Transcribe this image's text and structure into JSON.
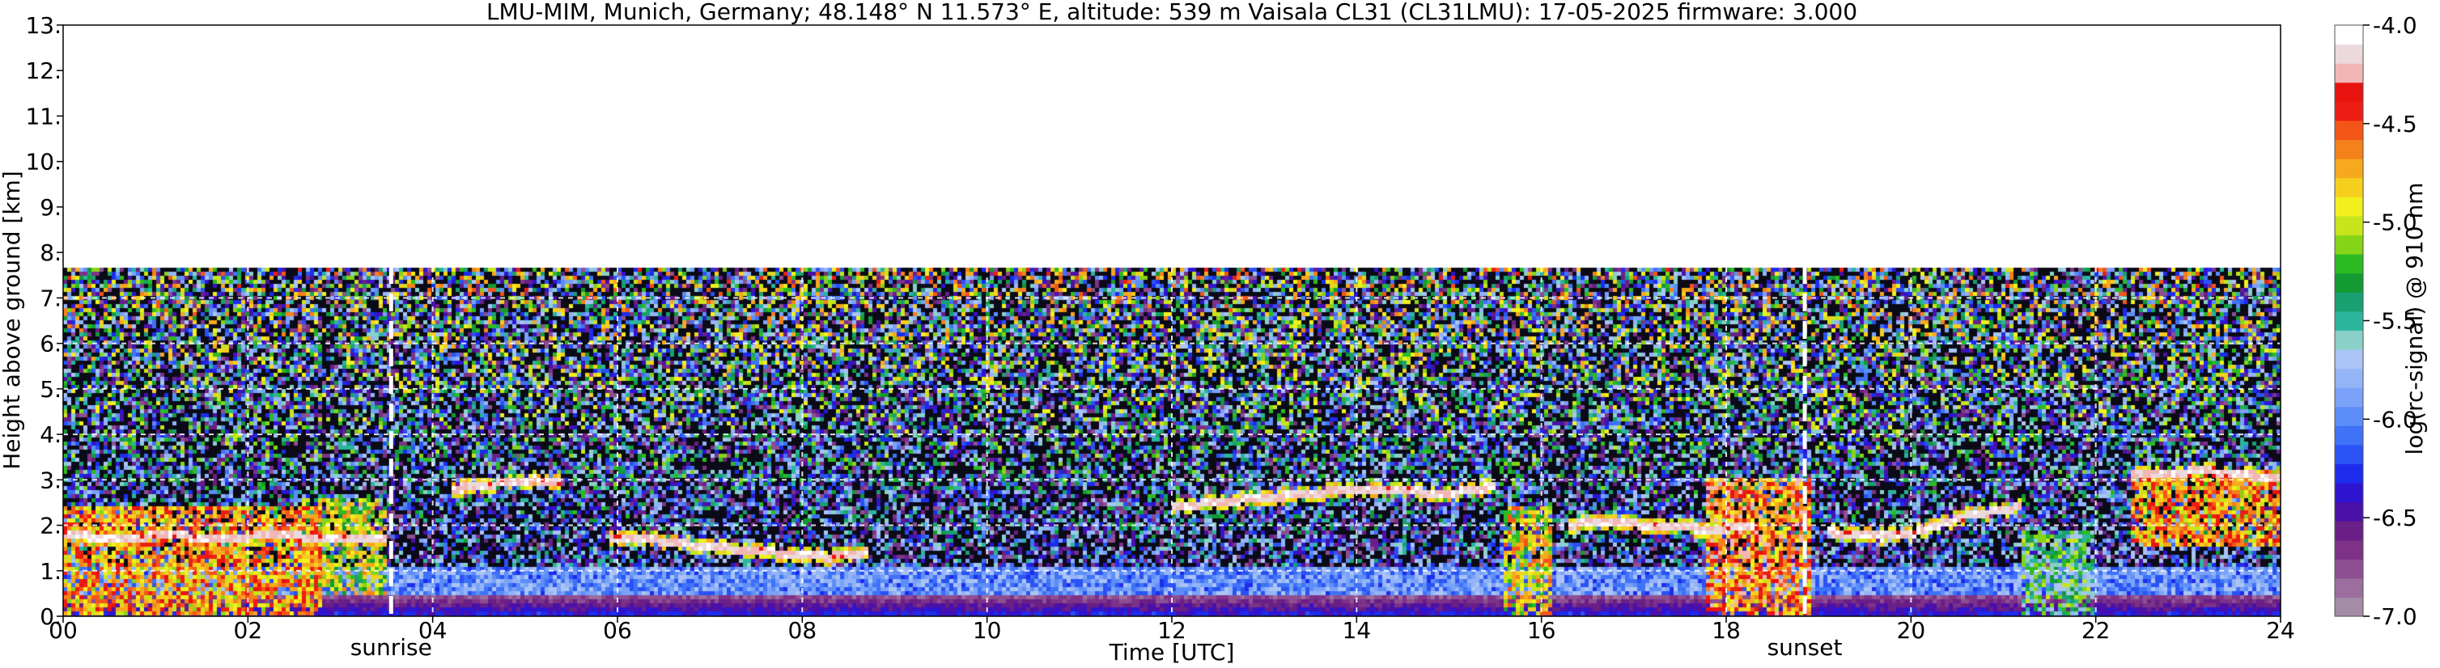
{
  "chart_data": {
    "type": "heatmap",
    "title": "LMU-MIM, Munich, Germany; 48.148° N 11.573° E, altitude: 539 m    Vaisala CL31 (CL31LMU): 17-05-2025    firmware: 3.000",
    "xlabel": "Time [UTC]",
    "ylabel": "Height above ground [km]",
    "colorbar_label": "log(rc-signal) @ 910 nm",
    "xlim": [
      0,
      24
    ],
    "ylim": [
      0,
      13
    ],
    "x_ticks": [
      {
        "value": 0,
        "label": "00"
      },
      {
        "value": 2,
        "label": "02"
      },
      {
        "value": 4,
        "label": "04"
      },
      {
        "value": 6,
        "label": "06"
      },
      {
        "value": 8,
        "label": "08"
      },
      {
        "value": 10,
        "label": "10"
      },
      {
        "value": 12,
        "label": "12"
      },
      {
        "value": 14,
        "label": "14"
      },
      {
        "value": 16,
        "label": "16"
      },
      {
        "value": 18,
        "label": "18"
      },
      {
        "value": 20,
        "label": "20"
      },
      {
        "value": 22,
        "label": "22"
      },
      {
        "value": 24,
        "label": "24"
      }
    ],
    "y_ticks": [
      {
        "value": 0,
        "label": "0."
      },
      {
        "value": 1,
        "label": "1."
      },
      {
        "value": 2,
        "label": "2."
      },
      {
        "value": 3,
        "label": "3."
      },
      {
        "value": 4,
        "label": "4."
      },
      {
        "value": 5,
        "label": "5."
      },
      {
        "value": 6,
        "label": "6."
      },
      {
        "value": 7,
        "label": "7."
      },
      {
        "value": 8,
        "label": "8."
      },
      {
        "value": 9,
        "label": "9."
      },
      {
        "value": 10,
        "label": "10."
      },
      {
        "value": 11,
        "label": "11."
      },
      {
        "value": 12,
        "label": "12."
      },
      {
        "value": 13,
        "label": "13."
      }
    ],
    "colorbar_range": [
      -7.0,
      -4.0
    ],
    "colorbar_ticks": [
      {
        "value": -4.0,
        "label": "-4.0"
      },
      {
        "value": -4.5,
        "label": "-4.5"
      },
      {
        "value": -5.0,
        "label": "-5.0"
      },
      {
        "value": -5.5,
        "label": "-5.5"
      },
      {
        "value": -6.0,
        "label": "-6.0"
      },
      {
        "value": -6.5,
        "label": "-6.5"
      },
      {
        "value": -7.0,
        "label": "-7.0"
      }
    ],
    "colormap": [
      "#a48ba6",
      "#9c6e9e",
      "#8e4f92",
      "#7d3287",
      "#6a1f86",
      "#4b10a8",
      "#2f14cf",
      "#1d2cec",
      "#2a52f4",
      "#3f72f6",
      "#5d8df7",
      "#7aa2f8",
      "#94b4f8",
      "#abc4f5",
      "#8ad0c8",
      "#2bb59d",
      "#1aa070",
      "#139a33",
      "#2dbb22",
      "#86d418",
      "#c8e51c",
      "#f1f01e",
      "#f6cf1e",
      "#f6a91d",
      "#f4811a",
      "#f45518",
      "#ec1e14",
      "#e8130f",
      "#f2b7b4",
      "#ecd9db",
      "#ffffff"
    ],
    "data_max_height": 7.7,
    "grid": true,
    "annotations": [
      {
        "type": "vline",
        "name": "sunrise",
        "x": 3.55,
        "label": "sunrise"
      },
      {
        "type": "vline",
        "name": "sunset",
        "x": 18.85,
        "label": "sunset"
      }
    ],
    "cloud_layers": [
      {
        "t": [
          0.0,
          0.3,
          0.6,
          0.9,
          1.2,
          1.5,
          1.8,
          2.0,
          2.3,
          2.6,
          2.9,
          3.2,
          3.5
        ],
        "h": [
          1.8,
          1.75,
          1.7,
          1.75,
          1.8,
          1.7,
          1.7,
          1.75,
          1.8,
          1.75,
          1.7,
          1.75,
          1.7
        ]
      },
      {
        "t": [
          4.2,
          4.5,
          4.8,
          5.1,
          5.4
        ],
        "h": [
          2.8,
          2.85,
          2.95,
          3.0,
          2.95
        ]
      },
      {
        "t": [
          5.9,
          6.3,
          6.7,
          7.1,
          7.5,
          7.9,
          8.3,
          8.7
        ],
        "h": [
          1.75,
          1.7,
          1.6,
          1.5,
          1.45,
          1.35,
          1.3,
          1.4
        ]
      },
      {
        "t": [
          12.0,
          12.5,
          13.0,
          13.5,
          14.0,
          14.5,
          15.0,
          15.5
        ],
        "h": [
          2.4,
          2.5,
          2.6,
          2.7,
          2.8,
          2.75,
          2.7,
          2.85
        ]
      },
      {
        "t": [
          16.3,
          16.7,
          17.1,
          17.5,
          17.9,
          18.3
        ],
        "h": [
          2.0,
          2.1,
          2.0,
          1.95,
          1.9,
          2.0
        ]
      },
      {
        "t": [
          19.1,
          19.4,
          19.7,
          20.0,
          20.3,
          20.6,
          20.9,
          21.2
        ],
        "h": [
          1.85,
          1.8,
          1.75,
          1.8,
          2.0,
          2.2,
          2.3,
          2.4
        ]
      },
      {
        "t": [
          22.4,
          22.8,
          23.2,
          23.6,
          24.0
        ],
        "h": [
          3.1,
          3.15,
          3.2,
          3.1,
          3.05
        ]
      }
    ],
    "aerosol_blocks": [
      {
        "t0": 0.0,
        "t1": 2.8,
        "h0": 0.0,
        "h1": 2.4,
        "level": -4.6
      },
      {
        "t0": 2.6,
        "t1": 3.5,
        "h0": 0.5,
        "h1": 2.6,
        "level": -4.9
      },
      {
        "t0": 15.6,
        "t1": 16.1,
        "h0": 0.0,
        "h1": 2.4,
        "level": -4.8
      },
      {
        "t0": 17.8,
        "t1": 18.9,
        "h0": 0.0,
        "h1": 3.0,
        "level": -4.5
      },
      {
        "t0": 21.2,
        "t1": 22.0,
        "h0": 0.0,
        "h1": 1.9,
        "level": -5.3
      },
      {
        "t0": 22.4,
        "t1": 24.0,
        "h0": 1.5,
        "h1": 3.2,
        "level": -4.6
      }
    ]
  }
}
